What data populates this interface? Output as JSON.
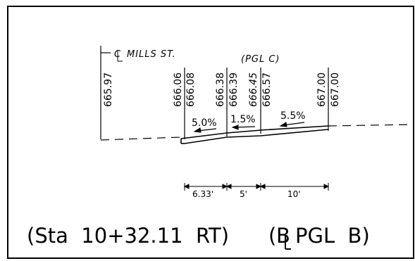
{
  "centerline_label": "MILLS ST.",
  "profile_grade_label": "(PGL C)",
  "elevations": [
    "665.97",
    "666.06",
    "666.08",
    "666.38",
    "666.39",
    "666.45",
    "666.57",
    "667.00",
    "667.00"
  ],
  "slopes": [
    "5.0%",
    "1.5%",
    "5.5%"
  ],
  "dimensions": [
    "6.33'",
    "5'",
    "10'"
  ],
  "station_label": "(Sta  10+32.11  RT)",
  "baseline_open": "(",
  "baseline_letter": "B",
  "baseline_rest": "PGL  B)"
}
